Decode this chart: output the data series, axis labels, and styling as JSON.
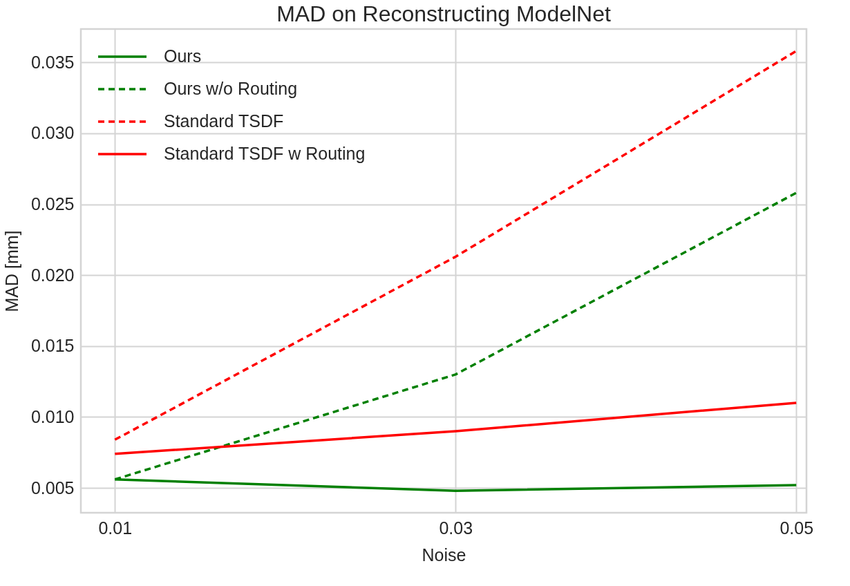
{
  "chart_data": {
    "type": "line",
    "title": "MAD on Reconstructing ModelNet",
    "xlabel": "Noise",
    "ylabel": "MAD [mm]",
    "x": [
      0.01,
      0.03,
      0.05
    ],
    "series": [
      {
        "name": "Ours",
        "color": "#008000",
        "line_style": "solid",
        "values": [
          0.0056,
          0.0048,
          0.0052
        ]
      },
      {
        "name": "Ours w/o Routing",
        "color": "#008000",
        "line_style": "dashed",
        "values": [
          0.0056,
          0.013,
          0.0258
        ]
      },
      {
        "name": "Standard TSDF",
        "color": "#ff0000",
        "line_style": "dashed",
        "values": [
          0.0084,
          0.0213,
          0.0358
        ]
      },
      {
        "name": "Standard TSDF w Routing",
        "color": "#ff0000",
        "line_style": "solid",
        "values": [
          0.0074,
          0.009,
          0.011
        ]
      }
    ],
    "xlim": [
      0.008,
      0.0506
    ],
    "xticks": [
      0.01,
      0.03,
      0.05
    ],
    "ylim": [
      0.00325,
      0.03735
    ],
    "yticks": [
      0.005,
      {
        "value": 0.01,
        "label": "0.010"
      },
      0.015,
      {
        "value": 0.02,
        "label": "0.020"
      },
      0.025,
      {
        "value": 0.03,
        "label": "0.030"
      },
      0.035
    ],
    "grid": true,
    "legend": "top left",
    "marker": "none"
  }
}
